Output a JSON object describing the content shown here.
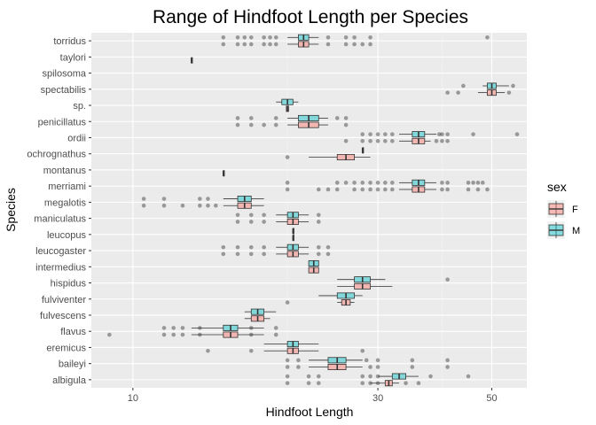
{
  "chart_data": {
    "type": "boxplot",
    "title": "Range of Hindfoot Length per Species",
    "xlabel": "Hindfoot Length",
    "ylabel": "Species",
    "x_scale": "log10",
    "xlim": [
      8.3,
      58.5
    ],
    "x_ticks": [
      10,
      30,
      50
    ],
    "x_tick_labels": [
      "10",
      "30",
      "50"
    ],
    "x_minor_ticks": [
      20,
      40
    ],
    "grid": true,
    "legend": {
      "title": "sex",
      "position": "right",
      "items": [
        {
          "label": "F",
          "color": "#F8766D"
        },
        {
          "label": "M",
          "color": "#00BFC4"
        }
      ]
    },
    "categories": [
      "torridus",
      "taylori",
      "spilosoma",
      "spectabilis",
      "sp.",
      "penicillatus",
      "ordii",
      "ochrognathus",
      "montanus",
      "merriami",
      "megalotis",
      "maniculatus",
      "leucopus",
      "leucogaster",
      "intermedius",
      "hispidus",
      "fulviventer",
      "fulvescens",
      "flavus",
      "eremicus",
      "baileyi",
      "albigula"
    ],
    "series": [
      {
        "name": "F",
        "color": "#F8766D",
        "boxes": [
          {
            "species": "torridus",
            "q1": 21,
            "median": 21.5,
            "q3": 22,
            "whisker_low": 20,
            "whisker_high": 23,
            "outliers": [
              15,
              16,
              16.5,
              17,
              18,
              18.5,
              19,
              24,
              26,
              27,
              28,
              29
            ]
          },
          {
            "species": "taylori",
            "q1": 13,
            "median": 13,
            "q3": 13,
            "whisker_low": 13,
            "whisker_high": 13,
            "outliers": []
          },
          {
            "species": "spectabilis",
            "q1": 49,
            "median": 50,
            "q3": 51,
            "whisker_low": 47,
            "whisker_high": 53,
            "outliers": [
              41,
              43,
              54
            ]
          },
          {
            "species": "sp.",
            "q1": 19.9,
            "median": 20,
            "q3": 20.1,
            "whisker_low": 19.9,
            "whisker_high": 20.1,
            "outliers": []
          },
          {
            "species": "penicillatus",
            "q1": 21,
            "median": 22,
            "q3": 23,
            "whisker_low": 20,
            "whisker_high": 24,
            "outliers": [
              16,
              17,
              18,
              19,
              26
            ]
          },
          {
            "species": "ordii",
            "q1": 35,
            "median": 36,
            "q3": 37,
            "whisker_low": 33,
            "whisker_high": 38,
            "outliers": [
              26,
              28,
              29,
              30,
              31,
              32,
              39,
              40,
              41
            ]
          },
          {
            "species": "ochrognathus",
            "q1": 25,
            "median": 26,
            "q3": 27,
            "whisker_low": 22,
            "whisker_high": 29,
            "outliers": [
              20
            ]
          },
          {
            "species": "montanus",
            "q1": 15,
            "median": 15,
            "q3": 15,
            "whisker_low": 15,
            "whisker_high": 15,
            "outliers": []
          },
          {
            "species": "merriami",
            "q1": 35,
            "median": 36,
            "q3": 37,
            "whisker_low": 33,
            "whisker_high": 39,
            "outliers": [
              20,
              23,
              24,
              25,
              27,
              28,
              29,
              30,
              31,
              32,
              40,
              41,
              45,
              47,
              49
            ]
          },
          {
            "species": "megalotis",
            "q1": 16,
            "median": 16.5,
            "q3": 17,
            "whisker_low": 15,
            "whisker_high": 18,
            "outliers": [
              10.5,
              11.5,
              12.5,
              13.5,
              14,
              14.5
            ]
          },
          {
            "species": "maniculatus",
            "q1": 20,
            "median": 20.5,
            "q3": 21,
            "whisker_low": 19,
            "whisker_high": 22,
            "outliers": [
              16,
              17,
              18,
              23
            ]
          },
          {
            "species": "leucopus",
            "q1": 20.5,
            "median": 20.5,
            "q3": 20.5,
            "whisker_low": 20.5,
            "whisker_high": 20.5,
            "outliers": []
          },
          {
            "species": "leucogaster",
            "q1": 20,
            "median": 20.5,
            "q3": 21,
            "whisker_low": 19,
            "whisker_high": 22,
            "outliers": [
              15,
              16,
              17,
              18,
              23,
              24
            ]
          },
          {
            "species": "intermedius",
            "q1": 22,
            "median": 22.5,
            "q3": 23,
            "whisker_low": 22,
            "whisker_high": 23,
            "outliers": []
          },
          {
            "species": "hispidus",
            "q1": 27,
            "median": 28,
            "q3": 29,
            "whisker_low": 25,
            "whisker_high": 32,
            "outliers": []
          },
          {
            "species": "fulviventer",
            "q1": 25.5,
            "median": 26,
            "q3": 26.5,
            "whisker_low": 25,
            "whisker_high": 27,
            "outliers": [
              20
            ]
          },
          {
            "species": "fulvescens",
            "q1": 17,
            "median": 17.5,
            "q3": 18,
            "whisker_low": 16.5,
            "whisker_high": 18.5,
            "outliers": []
          },
          {
            "species": "flavus",
            "q1": 15,
            "median": 15.5,
            "q3": 16,
            "whisker_low": 13,
            "whisker_high": 18,
            "outliers": [
              9,
              11.5,
              12,
              12.5,
              13.5,
              17,
              19
            ]
          },
          {
            "species": "eremicus",
            "q1": 20,
            "median": 20.5,
            "q3": 21,
            "whisker_low": 18,
            "whisker_high": 23,
            "outliers": [
              14,
              17,
              28
            ]
          },
          {
            "species": "baileyi",
            "q1": 24,
            "median": 25,
            "q3": 26,
            "whisker_low": 22,
            "whisker_high": 28,
            "outliers": [
              20,
              21,
              29,
              30,
              35,
              41
            ]
          },
          {
            "species": "albigula",
            "q1": 31,
            "median": 31.5,
            "q3": 32,
            "whisker_low": 29,
            "whisker_high": 33,
            "outliers": [
              20,
              22,
              23,
              28,
              29,
              30,
              34,
              36
            ]
          }
        ]
      },
      {
        "name": "M",
        "color": "#00BFC4",
        "boxes": [
          {
            "species": "torridus",
            "q1": 21,
            "median": 21.5,
            "q3": 22,
            "whisker_low": 20,
            "whisker_high": 23,
            "outliers": [
              15,
              16,
              16.5,
              17,
              18,
              18.5,
              19,
              24,
              26,
              27,
              29,
              49
            ]
          },
          {
            "species": "spectabilis",
            "q1": 49,
            "median": 50,
            "q3": 51,
            "whisker_low": 48,
            "whisker_high": 54,
            "outliers": [
              44,
              55
            ]
          },
          {
            "species": "sp.",
            "q1": 19.5,
            "median": 20,
            "q3": 20.5,
            "whisker_low": 19,
            "whisker_high": 21,
            "outliers": []
          },
          {
            "species": "penicillatus",
            "q1": 21,
            "median": 22,
            "q3": 23,
            "whisker_low": 20,
            "whisker_high": 24,
            "outliers": [
              16,
              17,
              19,
              25,
              26
            ]
          },
          {
            "species": "ordii",
            "q1": 35,
            "median": 36,
            "q3": 37,
            "whisker_low": 33,
            "whisker_high": 39,
            "outliers": [
              28,
              29,
              30,
              31,
              32,
              39.5,
              40,
              41,
              46,
              56
            ]
          },
          {
            "species": "ochrognathus",
            "q1": 28,
            "median": 28,
            "q3": 28,
            "whisker_low": 28,
            "whisker_high": 28,
            "outliers": []
          },
          {
            "species": "merriami",
            "q1": 35,
            "median": 36,
            "q3": 37,
            "whisker_low": 33,
            "whisker_high": 39,
            "outliers": [
              20,
              25,
              26,
              27,
              28,
              29,
              30,
              31,
              32,
              40,
              41,
              45,
              46,
              47,
              48
            ]
          },
          {
            "species": "megalotis",
            "q1": 16,
            "median": 16.5,
            "q3": 17,
            "whisker_low": 15,
            "whisker_high": 18,
            "outliers": [
              10.5,
              11.5,
              13.5,
              14
            ]
          },
          {
            "species": "maniculatus",
            "q1": 20,
            "median": 20.5,
            "q3": 21,
            "whisker_low": 19,
            "whisker_high": 22,
            "outliers": [
              16,
              17,
              18,
              23
            ]
          },
          {
            "species": "leucopus",
            "q1": 20.5,
            "median": 20.5,
            "q3": 20.5,
            "whisker_low": 20.5,
            "whisker_high": 20.5,
            "outliers": []
          },
          {
            "species": "leucogaster",
            "q1": 20,
            "median": 20.5,
            "q3": 21,
            "whisker_low": 19,
            "whisker_high": 22,
            "outliers": [
              15,
              16,
              17,
              18,
              23,
              24
            ]
          },
          {
            "species": "intermedius",
            "q1": 22,
            "median": 22.5,
            "q3": 23,
            "whisker_low": 22,
            "whisker_high": 23,
            "outliers": []
          },
          {
            "species": "hispidus",
            "q1": 27,
            "median": 28,
            "q3": 29,
            "whisker_low": 25,
            "whisker_high": 31,
            "outliers": [
              41
            ]
          },
          {
            "species": "fulviventer",
            "q1": 25,
            "median": 26,
            "q3": 27,
            "whisker_low": 23,
            "whisker_high": 28,
            "outliers": []
          },
          {
            "species": "fulvescens",
            "q1": 17,
            "median": 17.5,
            "q3": 18,
            "whisker_low": 16.5,
            "whisker_high": 19,
            "outliers": []
          },
          {
            "species": "flavus",
            "q1": 15,
            "median": 15.5,
            "q3": 16,
            "whisker_low": 13,
            "whisker_high": 18,
            "outliers": [
              11.5,
              12,
              12.5,
              13.5,
              17,
              19
            ]
          },
          {
            "species": "eremicus",
            "q1": 20,
            "median": 20.5,
            "q3": 21,
            "whisker_low": 18,
            "whisker_high": 23,
            "outliers": []
          },
          {
            "species": "baileyi",
            "q1": 24,
            "median": 25,
            "q3": 26,
            "whisker_low": 22,
            "whisker_high": 28,
            "outliers": [
              20,
              21,
              28.5,
              30,
              35,
              41
            ]
          },
          {
            "species": "albigula",
            "q1": 32,
            "median": 33,
            "q3": 34,
            "whisker_low": 30,
            "whisker_high": 36,
            "outliers": [
              20,
              22,
              23,
              28,
              29,
              30,
              38,
              45
            ]
          }
        ]
      }
    ]
  }
}
